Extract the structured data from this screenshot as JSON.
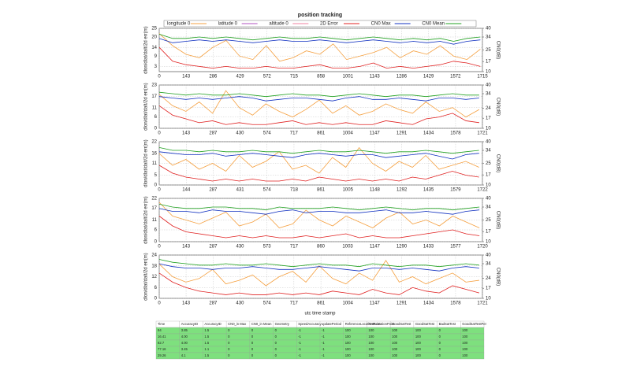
{
  "title": "position tracking",
  "x_label": "utc time stamp",
  "legend": [
    {
      "name": "longitude 0",
      "color": "#f5a040"
    },
    {
      "name": "latitude 0",
      "color": "#b050c0"
    },
    {
      "name": "altitude 0",
      "color": "#f080a0"
    },
    {
      "name": "2D Error",
      "color": "#e02020"
    },
    {
      "name": "CN0 Max",
      "color": "#1030c0"
    },
    {
      "name": "CN0 Mean",
      "color": "#20a020"
    }
  ],
  "chart_data": [
    {
      "type": "line",
      "y_label": "dlon/dlat/dalt/2d err(m)",
      "y2_label": "CN0(dB)",
      "xlim": [
        0,
        1715
      ],
      "xticks": [
        0,
        143,
        286,
        429,
        572,
        715,
        858,
        1001,
        1143,
        1286,
        1429,
        1572,
        1715
      ],
      "ylim": [
        0,
        25
      ],
      "yticks": [
        3,
        9,
        14,
        20,
        25
      ],
      "y2lim": [
        10,
        40
      ],
      "y2ticks": [
        10,
        17,
        25,
        34,
        40
      ],
      "grid": true,
      "x": [
        0,
        71,
        142,
        213,
        284,
        355,
        426,
        497,
        568,
        639,
        710,
        781,
        852,
        923,
        994,
        1065,
        1136,
        1207,
        1278,
        1349,
        1420,
        1491,
        1562,
        1633,
        1704
      ],
      "series": [
        {
          "color": "#f5a040",
          "values": [
            22,
            15,
            10,
            8,
            14,
            18,
            9,
            7,
            15,
            6,
            8,
            12,
            10,
            16,
            7,
            9,
            11,
            14,
            8,
            12,
            10,
            15,
            9,
            7,
            13
          ]
        },
        {
          "color": "#e02020",
          "values": [
            14,
            6,
            4,
            3,
            2,
            3,
            2,
            2,
            3,
            2,
            2,
            3,
            4,
            2,
            2,
            3,
            5,
            2,
            3,
            2,
            3,
            4,
            6,
            5,
            3
          ]
        },
        {
          "color": "#20a020",
          "axis": "y2",
          "values": [
            36,
            33,
            33,
            34,
            33,
            34,
            33,
            32,
            33,
            34,
            33,
            33,
            34,
            33,
            32,
            33,
            34,
            33,
            32,
            33,
            32,
            33,
            31,
            33,
            34
          ]
        },
        {
          "color": "#1030c0",
          "axis": "y2",
          "values": [
            33,
            30,
            31,
            32,
            31,
            32,
            31,
            30,
            31,
            32,
            31,
            31,
            32,
            31,
            30,
            31,
            32,
            31,
            30,
            31,
            30,
            31,
            29,
            31,
            32
          ]
        }
      ]
    },
    {
      "type": "line",
      "y_label": "dlon/dlat/dalt/2d err(m)",
      "y2_label": "CN0(dB)",
      "xlim": [
        0,
        1721
      ],
      "xticks": [
        0,
        143,
        287,
        430,
        574,
        717,
        861,
        1004,
        1147,
        1291,
        1434,
        1578,
        1721
      ],
      "ylim": [
        0,
        23
      ],
      "yticks": [
        0,
        6,
        11,
        17,
        23
      ],
      "y2lim": [
        10,
        40
      ],
      "y2ticks": [
        10,
        17,
        24,
        34,
        40
      ],
      "grid": true,
      "x": [
        0,
        71,
        142,
        213,
        284,
        355,
        426,
        497,
        568,
        639,
        710,
        781,
        852,
        923,
        994,
        1065,
        1136,
        1207,
        1278,
        1349,
        1420,
        1491,
        1562,
        1633,
        1704
      ],
      "series": [
        {
          "color": "#f5a040",
          "values": [
            18,
            12,
            9,
            14,
            8,
            20,
            11,
            7,
            13,
            9,
            6,
            10,
            15,
            8,
            12,
            7,
            9,
            13,
            10,
            8,
            14,
            9,
            11,
            6,
            10
          ]
        },
        {
          "color": "#e02020",
          "values": [
            12,
            7,
            5,
            3,
            4,
            2,
            3,
            2,
            2,
            3,
            4,
            2,
            3,
            2,
            3,
            2,
            2,
            4,
            3,
            2,
            5,
            6,
            8,
            4,
            3
          ]
        },
        {
          "color": "#20a020",
          "axis": "y2",
          "values": [
            35,
            34,
            33,
            34,
            33,
            33,
            34,
            33,
            32,
            33,
            34,
            33,
            33,
            32,
            33,
            34,
            33,
            32,
            33,
            33,
            32,
            33,
            34,
            33,
            33
          ]
        },
        {
          "color": "#1030c0",
          "axis": "y2",
          "values": [
            32,
            31,
            30,
            31,
            30,
            31,
            32,
            31,
            29,
            30,
            31,
            31,
            30,
            29,
            31,
            32,
            30,
            30,
            31,
            30,
            29,
            31,
            31,
            30,
            31
          ]
        }
      ]
    },
    {
      "type": "line",
      "y_label": "dlon/dlat/dalt/2d err(m)",
      "y2_label": "CN0(dB)",
      "xlim": [
        0,
        1722
      ],
      "xticks": [
        0,
        144,
        287,
        431,
        574,
        718,
        861,
        1005,
        1148,
        1292,
        1435,
        1579,
        1722
      ],
      "ylim": [
        0,
        22
      ],
      "yticks": [
        0,
        5,
        11,
        16,
        22
      ],
      "y2lim": [
        10,
        40
      ],
      "y2ticks": [
        10,
        17,
        25,
        34,
        40
      ],
      "grid": true,
      "x": [
        0,
        71,
        142,
        213,
        284,
        355,
        426,
        497,
        568,
        639,
        710,
        781,
        852,
        923,
        994,
        1065,
        1136,
        1207,
        1278,
        1349,
        1420,
        1491,
        1562,
        1633,
        1704
      ],
      "series": [
        {
          "color": "#f5a040",
          "values": [
            16,
            10,
            13,
            8,
            11,
            7,
            15,
            9,
            12,
            17,
            8,
            10,
            6,
            14,
            9,
            19,
            11,
            7,
            12,
            9,
            15,
            8,
            10,
            12,
            9
          ]
        },
        {
          "color": "#e02020",
          "values": [
            10,
            6,
            4,
            3,
            2,
            3,
            2,
            3,
            2,
            2,
            3,
            2,
            4,
            3,
            2,
            3,
            2,
            3,
            2,
            4,
            3,
            5,
            7,
            5,
            4
          ]
        },
        {
          "color": "#20a020",
          "axis": "y2",
          "values": [
            36,
            34,
            34,
            33,
            34,
            33,
            33,
            34,
            33,
            33,
            32,
            33,
            34,
            33,
            33,
            34,
            33,
            32,
            33,
            33,
            34,
            33,
            32,
            33,
            34
          ]
        },
        {
          "color": "#1030c0",
          "axis": "y2",
          "values": [
            33,
            32,
            31,
            31,
            32,
            30,
            31,
            32,
            31,
            30,
            29,
            31,
            32,
            31,
            30,
            31,
            31,
            29,
            30,
            31,
            32,
            30,
            28,
            31,
            32
          ]
        }
      ]
    },
    {
      "type": "line",
      "y_label": "dlon/dlat/dalt/2d err(m)",
      "y2_label": "CN0(dB)",
      "xlim": [
        0,
        1720
      ],
      "xticks": [
        0,
        143,
        287,
        430,
        573,
        717,
        860,
        1003,
        1147,
        1290,
        1433,
        1577,
        1720
      ],
      "ylim": [
        0,
        22
      ],
      "yticks": [
        0,
        6,
        11,
        17,
        22
      ],
      "y2lim": [
        10,
        40
      ],
      "y2ticks": [
        10,
        17,
        25,
        34,
        40
      ],
      "grid": true,
      "x": [
        0,
        71,
        142,
        213,
        284,
        355,
        426,
        497,
        568,
        639,
        710,
        781,
        852,
        923,
        994,
        1065,
        1136,
        1207,
        1278,
        1349,
        1420,
        1491,
        1562,
        1633,
        1704
      ],
      "series": [
        {
          "color": "#f5a040",
          "values": [
            20,
            13,
            11,
            9,
            12,
            15,
            8,
            10,
            14,
            7,
            9,
            16,
            11,
            8,
            13,
            10,
            7,
            12,
            15,
            9,
            11,
            8,
            13,
            10,
            7
          ]
        },
        {
          "color": "#e02020",
          "values": [
            13,
            8,
            5,
            4,
            3,
            2,
            3,
            2,
            3,
            2,
            2,
            3,
            2,
            3,
            4,
            2,
            3,
            2,
            2,
            3,
            4,
            5,
            6,
            4,
            3
          ]
        },
        {
          "color": "#20a020",
          "axis": "y2",
          "values": [
            36,
            34,
            33,
            33,
            34,
            34,
            33,
            33,
            32,
            34,
            33,
            33,
            33,
            34,
            33,
            32,
            33,
            34,
            33,
            32,
            33,
            33,
            32,
            33,
            34
          ]
        },
        {
          "color": "#1030c0",
          "axis": "y2",
          "values": [
            33,
            31,
            31,
            30,
            32,
            31,
            31,
            30,
            29,
            31,
            32,
            30,
            31,
            31,
            30,
            30,
            31,
            32,
            30,
            30,
            31,
            30,
            29,
            31,
            32
          ]
        }
      ]
    },
    {
      "type": "line",
      "y_label": "dlon/dlat/dalt/2d err(m)",
      "y2_label": "CN0(dB)",
      "xlim": [
        0,
        1721
      ],
      "xticks": [
        0,
        143,
        287,
        430,
        574,
        717,
        861,
        1004,
        1147,
        1291,
        1434,
        1578,
        1721
      ],
      "ylim": [
        0,
        24
      ],
      "yticks": [
        0,
        6,
        12,
        18,
        24
      ],
      "y2lim": [
        10,
        40
      ],
      "y2ticks": [
        10,
        17,
        24,
        34,
        40
      ],
      "grid": true,
      "x": [
        0,
        71,
        142,
        213,
        284,
        355,
        426,
        497,
        568,
        639,
        710,
        781,
        852,
        923,
        994,
        1065,
        1136,
        1207,
        1278,
        1349,
        1420,
        1491,
        1562,
        1633,
        1704
      ],
      "series": [
        {
          "color": "#f5a040",
          "values": [
            19,
            12,
            9,
            11,
            16,
            8,
            10,
            13,
            7,
            12,
            15,
            9,
            18,
            11,
            8,
            14,
            10,
            21,
            9,
            12,
            8,
            11,
            14,
            9,
            10
          ]
        },
        {
          "color": "#e02020",
          "values": [
            14,
            9,
            6,
            4,
            3,
            2,
            3,
            2,
            2,
            3,
            2,
            3,
            2,
            4,
            3,
            2,
            5,
            3,
            2,
            6,
            4,
            3,
            7,
            5,
            3
          ]
        },
        {
          "color": "#20a020",
          "axis": "y2",
          "values": [
            37,
            35,
            34,
            33,
            33,
            34,
            33,
            33,
            34,
            33,
            32,
            33,
            34,
            33,
            33,
            32,
            34,
            33,
            32,
            33,
            33,
            32,
            33,
            34,
            33
          ]
        },
        {
          "color": "#1030c0",
          "axis": "y2",
          "values": [
            34,
            32,
            31,
            31,
            30,
            31,
            31,
            32,
            31,
            30,
            30,
            31,
            32,
            31,
            30,
            29,
            31,
            31,
            30,
            31,
            30,
            29,
            31,
            32,
            31
          ]
        }
      ]
    }
  ],
  "table": {
    "header": [
      "Time",
      "AccuracyID",
      "AccuracyID",
      "CN0_in Max",
      "CN0_in Mean",
      "Geometry",
      "SpeedAccuracy",
      "updatePeriod",
      "ReferenceLocationPoint",
      "TestLocationPoint",
      "GoodSatTest",
      "GoodSatTest",
      "BadSatTest",
      "GoodSatTestPer"
    ],
    "rows": [
      [
        "94",
        "3.85",
        "1.5",
        "0",
        "0",
        "0",
        "-1",
        "-1",
        "100",
        "100",
        "100",
        "100",
        "0",
        "100"
      ],
      [
        "16.41",
        "4.00",
        "1.5",
        "0",
        "0",
        "0",
        "-1",
        "-1",
        "100",
        "100",
        "100",
        "100",
        "0",
        "100"
      ],
      [
        "82.7",
        "4.00",
        "1.5",
        "0",
        "0",
        "0",
        "-1",
        "-1",
        "100",
        "100",
        "100",
        "100",
        "0",
        "100"
      ],
      [
        "77.16",
        "3.45",
        "1.1",
        "0",
        "0",
        "0",
        "-1",
        "-1",
        "100",
        "100",
        "100",
        "100",
        "0",
        "100"
      ],
      [
        "29.26",
        "4.1",
        "1.5",
        "0",
        "0",
        "0",
        "-1",
        "-1",
        "100",
        "100",
        "100",
        "100",
        "0",
        "100"
      ]
    ]
  }
}
